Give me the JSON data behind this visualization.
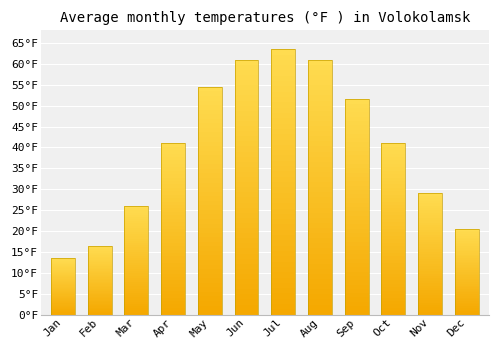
{
  "title": "Average monthly temperatures (°F ) in Volokolamsk",
  "months": [
    "Jan",
    "Feb",
    "Mar",
    "Apr",
    "May",
    "Jun",
    "Jul",
    "Aug",
    "Sep",
    "Oct",
    "Nov",
    "Dec"
  ],
  "values": [
    13.5,
    16.5,
    26,
    41,
    54.5,
    61,
    63.5,
    61,
    51.5,
    41,
    29,
    20.5
  ],
  "bar_color_bottom": "#F5A800",
  "bar_color_top": "#FFD966",
  "bar_edge_color": "#C8A000",
  "background_color": "#FFFFFF",
  "plot_bg_color": "#F0F0F0",
  "grid_color": "#FFFFFF",
  "yticks": [
    0,
    5,
    10,
    15,
    20,
    25,
    30,
    35,
    40,
    45,
    50,
    55,
    60,
    65
  ],
  "ylim": [
    0,
    68
  ],
  "title_fontsize": 10,
  "tick_fontsize": 8,
  "font_family": "monospace"
}
